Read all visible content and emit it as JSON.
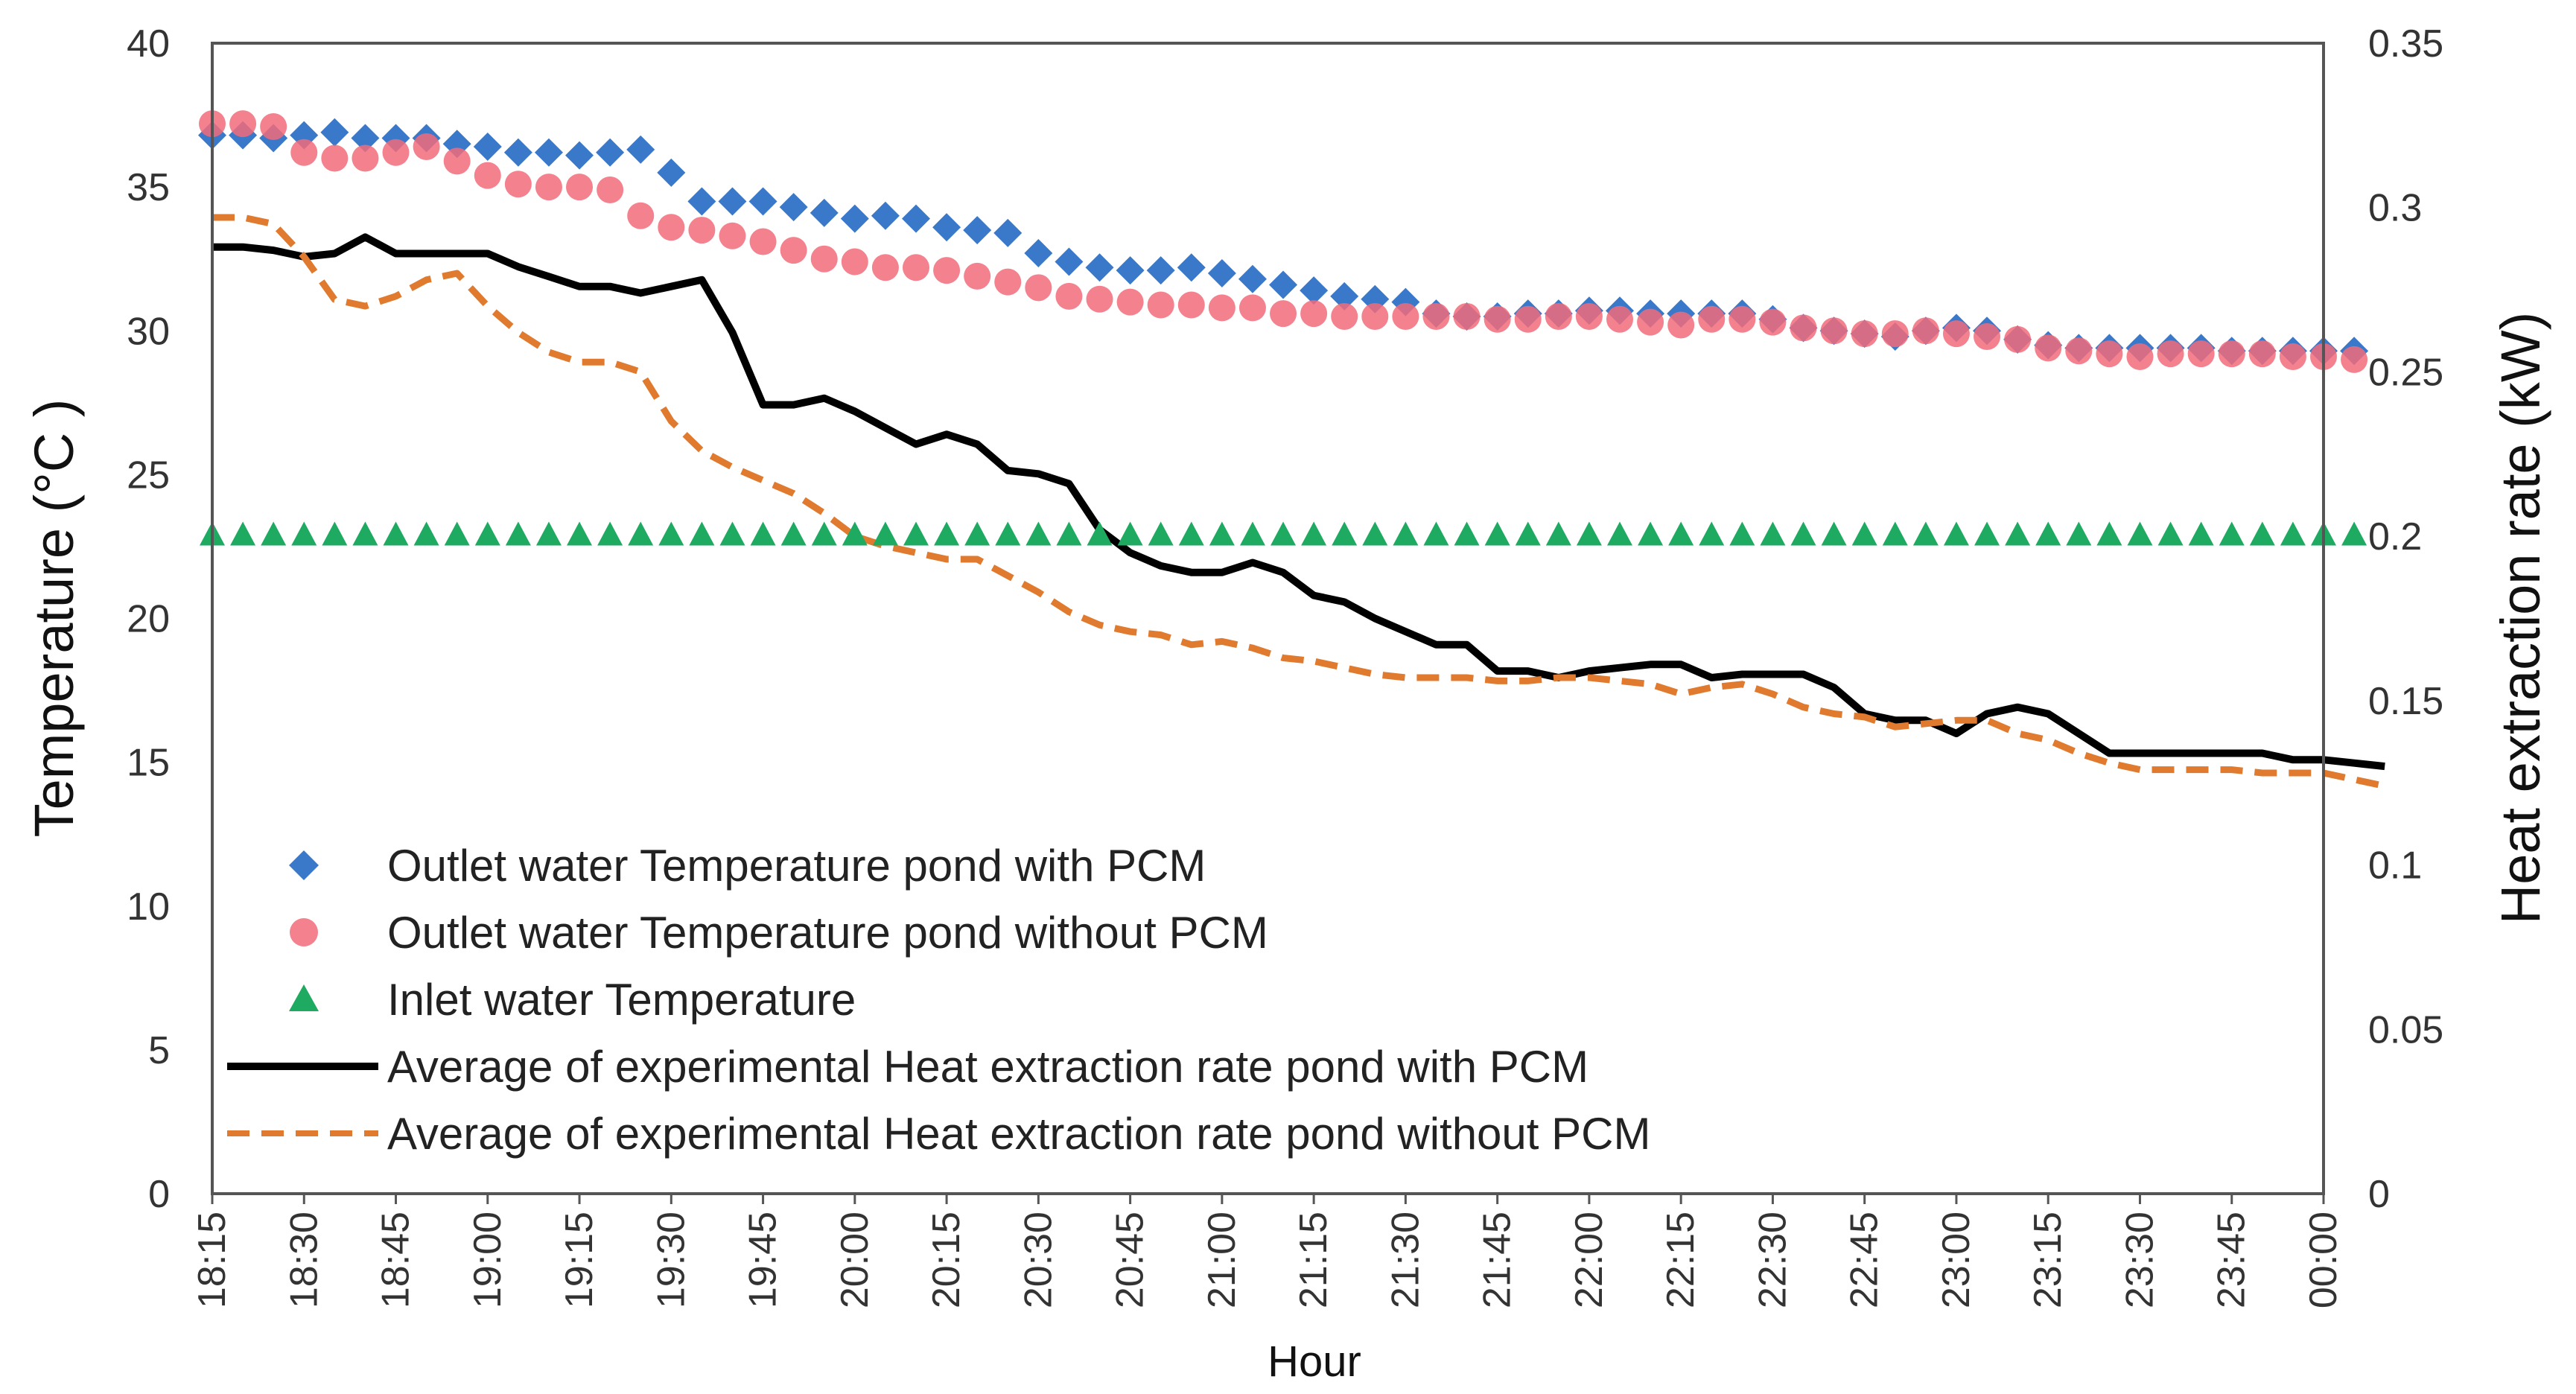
{
  "chart_data": {
    "type": "line",
    "title": "",
    "xlabel": "Hour",
    "ylabel_left": "Temperature (°C )",
    "ylabel_right": "Heat extraction rate (kW)",
    "ylim_left": [
      0,
      40
    ],
    "ylim_right": [
      0,
      0.35
    ],
    "yticks_left": [
      "0",
      "5",
      "10",
      "15",
      "20",
      "25",
      "30",
      "35",
      "40"
    ],
    "yticks_right": [
      "0",
      "0.05",
      "0.1",
      "0.15",
      "0.2",
      "0.25",
      "0.3",
      "0.35"
    ],
    "xticks": [
      "18:15",
      "18:30",
      "18:45",
      "19:00",
      "19:15",
      "19:30",
      "19:45",
      "20:00",
      "20:15",
      "20:30",
      "20:45",
      "21:00",
      "21:15",
      "21:30",
      "21:45",
      "22:00",
      "22:15",
      "22:30",
      "22:45",
      "23:00",
      "23:15",
      "23:30",
      "23:45",
      "00:00"
    ],
    "x_interval_minutes": 5,
    "grid": false,
    "legend_position": "bottom-left",
    "series": [
      {
        "name": "Outlet water Temperature pond with PCM",
        "axis": "left",
        "marker": "diamond",
        "color": "#3a78c9",
        "values": [
          36.8,
          36.8,
          36.7,
          36.8,
          36.9,
          36.7,
          36.7,
          36.7,
          36.5,
          36.4,
          36.2,
          36.2,
          36.1,
          36.2,
          36.3,
          35.5,
          34.5,
          34.5,
          34.5,
          34.3,
          34.1,
          33.9,
          34.0,
          33.9,
          33.6,
          33.5,
          33.4,
          32.7,
          32.4,
          32.2,
          32.1,
          32.1,
          32.2,
          32.0,
          31.8,
          31.6,
          31.4,
          31.2,
          31.1,
          31.0,
          30.6,
          30.5,
          30.5,
          30.6,
          30.6,
          30.7,
          30.7,
          30.6,
          30.6,
          30.6,
          30.6,
          30.4,
          30.1,
          30.0,
          29.9,
          29.8,
          30.0,
          30.1,
          30.0,
          29.7,
          29.5,
          29.4,
          29.4,
          29.4,
          29.4,
          29.4,
          29.3,
          29.3,
          29.3,
          29.3,
          29.3
        ]
      },
      {
        "name": "Outlet water Temperature pond without PCM",
        "axis": "left",
        "marker": "circle",
        "color": "#f26b7a",
        "values": [
          37.2,
          37.2,
          37.1,
          36.2,
          36.0,
          36.0,
          36.2,
          36.4,
          35.9,
          35.4,
          35.1,
          35.0,
          35.0,
          34.9,
          34.0,
          33.6,
          33.5,
          33.3,
          33.1,
          32.8,
          32.5,
          32.4,
          32.2,
          32.2,
          32.1,
          31.9,
          31.7,
          31.5,
          31.2,
          31.1,
          31.0,
          30.9,
          30.9,
          30.8,
          30.8,
          30.6,
          30.6,
          30.5,
          30.5,
          30.5,
          30.5,
          30.5,
          30.4,
          30.4,
          30.5,
          30.5,
          30.4,
          30.3,
          30.2,
          30.4,
          30.4,
          30.3,
          30.1,
          30.0,
          29.9,
          29.9,
          30.0,
          29.9,
          29.8,
          29.7,
          29.4,
          29.3,
          29.2,
          29.1,
          29.2,
          29.2,
          29.2,
          29.2,
          29.1,
          29.1,
          29.0
        ]
      },
      {
        "name": "Inlet water Temperature",
        "axis": "left",
        "marker": "triangle",
        "color": "#1faa62",
        "values": [
          22.9,
          22.9,
          22.9,
          22.9,
          22.9,
          22.9,
          22.9,
          22.9,
          22.9,
          22.9,
          22.9,
          22.9,
          22.9,
          22.9,
          22.9,
          22.9,
          22.9,
          22.9,
          22.9,
          22.9,
          22.9,
          22.9,
          22.9,
          22.9,
          22.9,
          22.9,
          22.9,
          22.9,
          22.9,
          22.9,
          22.9,
          22.9,
          22.9,
          22.9,
          22.9,
          22.9,
          22.9,
          22.9,
          22.9,
          22.9,
          22.9,
          22.9,
          22.9,
          22.9,
          22.9,
          22.9,
          22.9,
          22.9,
          22.9,
          22.9,
          22.9,
          22.9,
          22.9,
          22.9,
          22.9,
          22.9,
          22.9,
          22.9,
          22.9,
          22.9,
          22.9,
          22.9,
          22.9,
          22.9,
          22.9,
          22.9,
          22.9,
          22.9,
          22.9,
          22.9,
          22.9
        ]
      },
      {
        "name": "Average of experimental Heat extraction rate pond with PCM",
        "axis": "right",
        "style": "solid",
        "color": "#000000",
        "values": [
          0.288,
          0.288,
          0.287,
          0.285,
          0.286,
          0.291,
          0.286,
          0.286,
          0.286,
          0.286,
          0.282,
          0.279,
          0.276,
          0.276,
          0.274,
          0.276,
          0.278,
          0.262,
          0.24,
          0.24,
          0.242,
          0.238,
          0.233,
          0.228,
          0.231,
          0.228,
          0.22,
          0.219,
          0.216,
          0.202,
          0.195,
          0.191,
          0.189,
          0.189,
          0.192,
          0.189,
          0.182,
          0.18,
          0.175,
          0.171,
          0.167,
          0.167,
          0.159,
          0.159,
          0.157,
          0.159,
          0.16,
          0.161,
          0.161,
          0.157,
          0.158,
          0.158,
          0.158,
          0.154,
          0.146,
          0.144,
          0.144,
          0.14,
          0.146,
          0.148,
          0.146,
          0.14,
          0.134,
          0.134,
          0.134,
          0.134,
          0.134,
          0.134,
          0.132,
          0.132,
          0.131,
          0.13
        ]
      },
      {
        "name": "Average of experimental Heat extraction rate pond without PCM",
        "axis": "right",
        "style": "dashed",
        "color": "#e07a2e",
        "values": [
          0.297,
          0.297,
          0.295,
          0.285,
          0.272,
          0.27,
          0.273,
          0.278,
          0.28,
          0.27,
          0.262,
          0.256,
          0.253,
          0.253,
          0.25,
          0.235,
          0.226,
          0.221,
          0.217,
          0.213,
          0.207,
          0.2,
          0.197,
          0.195,
          0.193,
          0.193,
          0.188,
          0.183,
          0.177,
          0.173,
          0.171,
          0.17,
          0.167,
          0.168,
          0.166,
          0.163,
          0.162,
          0.16,
          0.158,
          0.157,
          0.157,
          0.157,
          0.156,
          0.156,
          0.157,
          0.157,
          0.156,
          0.155,
          0.152,
          0.154,
          0.155,
          0.152,
          0.148,
          0.146,
          0.145,
          0.142,
          0.143,
          0.144,
          0.144,
          0.14,
          0.138,
          0.134,
          0.131,
          0.129,
          0.129,
          0.129,
          0.129,
          0.128,
          0.128,
          0.128,
          0.126,
          0.124
        ]
      }
    ]
  }
}
